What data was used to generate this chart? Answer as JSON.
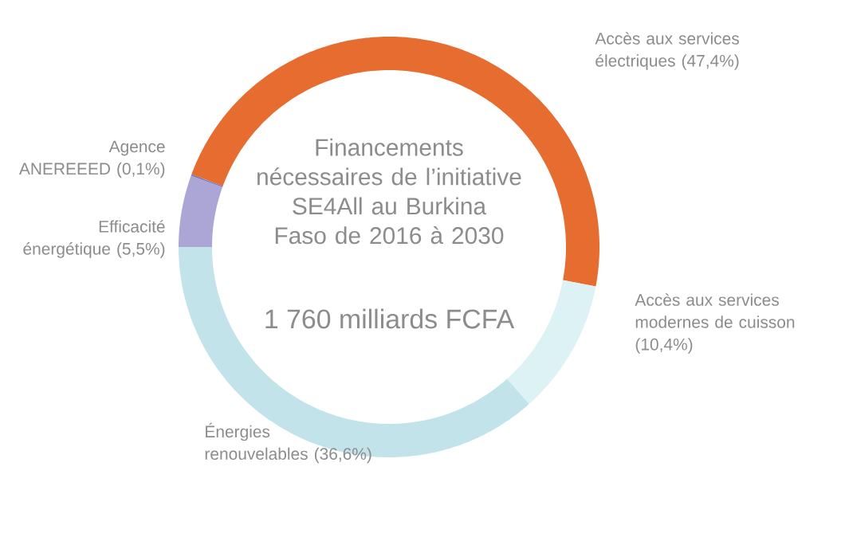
{
  "chart_data": {
    "type": "donut",
    "title": "Financements nécessaires de l’initiative SE4All au Burkina Faso de 2016 à 2030",
    "subtitle": "1 760 milliards FCFA",
    "categories": [
      "Accès aux services électriques",
      "Accès aux services modernes de cuisson",
      "Énergies renouvelables",
      "Efficacité énergétique",
      "Agence ANEREEED"
    ],
    "values": [
      47.4,
      10.4,
      36.6,
      5.5,
      0.1
    ],
    "value_labels": [
      "(47,4%)",
      "(10,4%)",
      "(36,6%)",
      "(5,5%)",
      "(0,1%)"
    ],
    "colors": [
      "#e66c30",
      "#dcf2f5",
      "#c2e3ea",
      "#aba6d6",
      "#6f74b8"
    ]
  }
}
